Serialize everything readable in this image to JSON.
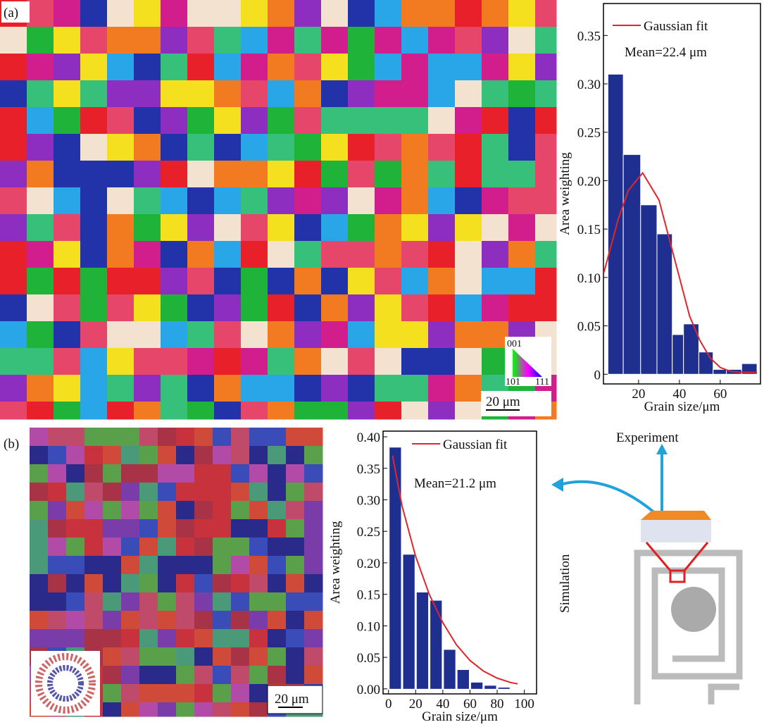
{
  "chart_data": [
    {
      "type": "histogram",
      "xlabel": "Grain size/μm",
      "ylabel": "Area weighting",
      "bins": [
        5,
        12.5,
        21,
        29,
        36.5,
        42,
        49.5,
        56.5,
        63,
        70.5,
        78
      ],
      "values": [
        0.31,
        0.227,
        0.175,
        0.145,
        0.041,
        0.052,
        0.023,
        0.005,
        0.005,
        0.011
      ],
      "color": "#1f2f8f",
      "fit": {
        "name": "Gaussian fit",
        "color": "#e0262a",
        "x": [
          3,
          10,
          15,
          22,
          30,
          35,
          40,
          45,
          50,
          55,
          60,
          65,
          70,
          78
        ],
        "values": [
          0.105,
          0.16,
          0.19,
          0.208,
          0.18,
          0.14,
          0.1,
          0.06,
          0.035,
          0.017,
          0.007,
          0.003,
          0.002,
          0.002
        ]
      },
      "annotation": "Mean=22.4 μm",
      "xlim": [
        2.8,
        79.7
      ],
      "ylim": [
        -0.01,
        0.383
      ],
      "xticks": [
        20,
        40,
        60
      ],
      "yticks": [
        0,
        0.05,
        {
          "value": 0.1,
          "label": "0.10"
        },
        0.15,
        {
          "value": 0.2,
          "label": "0.20"
        },
        0.25,
        {
          "value": 0.3,
          "label": "0.30"
        },
        0.35
      ]
    },
    {
      "type": "histogram",
      "xlabel": "Grain size/μm",
      "ylabel": "Area weighting",
      "bins": [
        0,
        10,
        20,
        30,
        40,
        50,
        60,
        70,
        80,
        90
      ],
      "values": [
        0.383,
        0.213,
        0.153,
        0.14,
        0.062,
        0.03,
        0.01,
        0.005,
        0.002
      ],
      "color": "#1f2f8f",
      "fit": {
        "name": "Gaussian fit",
        "color": "#e0262a",
        "x": [
          3,
          10,
          20,
          30,
          40,
          50,
          60,
          70,
          80,
          90,
          95
        ],
        "values": [
          0.37,
          0.29,
          0.21,
          0.15,
          0.105,
          0.07,
          0.045,
          0.028,
          0.017,
          0.01,
          0.008
        ]
      },
      "annotation": "Mean=21.2 μm",
      "xlim": [
        -4,
        109
      ],
      "ylim": [
        -0.008,
        0.409
      ],
      "xticks": [
        0,
        20,
        40,
        60,
        80,
        100
      ],
      "yticks": [
        {
          "value": 0,
          "label": "0.00"
        },
        0.05,
        {
          "value": 0.1,
          "label": "0.10"
        },
        0.15,
        {
          "value": 0.2,
          "label": "0.20"
        },
        0.25,
        {
          "value": 0.3,
          "label": "0.30"
        },
        0.35,
        {
          "value": 0.4,
          "label": "0.40"
        }
      ]
    }
  ],
  "labels": {
    "panel_a": "(a)",
    "panel_b": "(b)",
    "scale_a": "20 μm",
    "scale_b": "20 μm",
    "ipf_001": "001",
    "ipf_101": "101",
    "ipf_111": "111",
    "experiment": "Experiment",
    "simulation": "Simulation"
  }
}
